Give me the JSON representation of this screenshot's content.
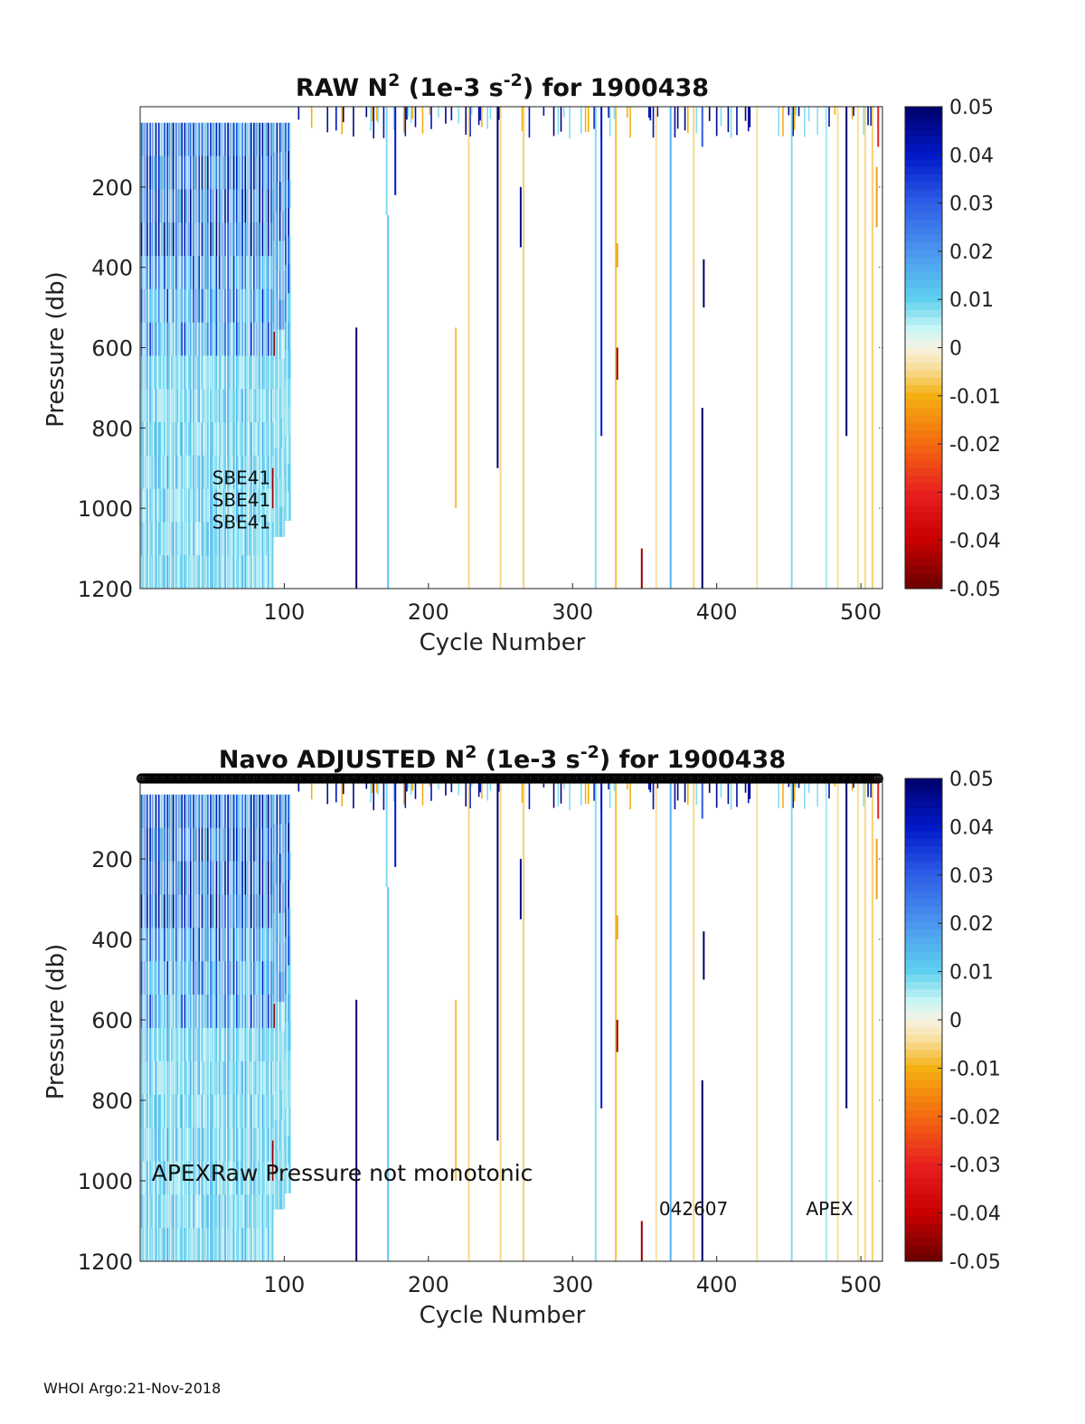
{
  "footer": "WHOI Argo:21-Nov-2018",
  "colorbar": {
    "ticks": [
      "0.05",
      "0.04",
      "0.03",
      "0.02",
      "0.01",
      "0",
      "-0.01",
      "-0.02",
      "-0.03",
      "-0.04",
      "-0.05"
    ],
    "stops": [
      {
        "v": 0.05,
        "c": "#00006a"
      },
      {
        "v": 0.04,
        "c": "#0018c8"
      },
      {
        "v": 0.03,
        "c": "#2e5ee6"
      },
      {
        "v": 0.02,
        "c": "#4a96ee"
      },
      {
        "v": 0.01,
        "c": "#5ed0ee"
      },
      {
        "v": 0.004,
        "c": "#c6f5f5"
      },
      {
        "v": 0.0,
        "c": "#f7f3e4"
      },
      {
        "v": -0.004,
        "c": "#f8e0a0"
      },
      {
        "v": -0.01,
        "c": "#f4b010"
      },
      {
        "v": -0.02,
        "c": "#f46a10"
      },
      {
        "v": -0.03,
        "c": "#e82020"
      },
      {
        "v": -0.04,
        "c": "#c80000"
      },
      {
        "v": -0.05,
        "c": "#6a0000"
      }
    ]
  },
  "chart_data": [
    {
      "type": "heatmap",
      "title_parts": [
        "RAW N",
        "2",
        " (1e-3 s",
        "-2",
        ") for 1900438"
      ],
      "xlabel": "Cycle Number",
      "ylabel": "Pressure (db)",
      "xlim": [
        0,
        515
      ],
      "ylim": [
        1200,
        0
      ],
      "xticks": [
        100,
        200,
        300,
        400,
        500
      ],
      "yticks": [
        200,
        400,
        600,
        800,
        1000,
        1200
      ],
      "clim": [
        -0.05,
        0.05
      ],
      "annotations": [
        {
          "text": "SBE41",
          "x": 50,
          "y": 940
        },
        {
          "text": "SBE41",
          "x": 50,
          "y": 995
        },
        {
          "text": "SBE41",
          "x": 50,
          "y": 1050
        }
      ],
      "markers_top": false
    },
    {
      "type": "heatmap",
      "title_parts": [
        "Navo  ADJUSTED N",
        "2",
        " (1e-3 s",
        "-2",
        ") for 1900438"
      ],
      "xlabel": "Cycle Number",
      "ylabel": "Pressure (db)",
      "xlim": [
        0,
        515
      ],
      "ylim": [
        1200,
        0
      ],
      "xticks": [
        100,
        200,
        300,
        400,
        500
      ],
      "yticks": [
        200,
        400,
        600,
        800,
        1000,
        1200
      ],
      "clim": [
        -0.05,
        0.05
      ],
      "annotations": [
        {
          "text": "APEXRaw Pressure not monotonic",
          "x": 8,
          "y": 1000,
          "size": "big"
        },
        {
          "text": "042607",
          "x": 360,
          "y": 1085
        },
        {
          "text": "APEX",
          "x": 462,
          "y": 1085
        }
      ],
      "markers_top": true
    }
  ],
  "columns": [
    {
      "x": 150,
      "y0": 550,
      "y1": 1200,
      "v": 0.05
    },
    {
      "x": 171,
      "y0": 0,
      "y1": 270,
      "v": 0.008
    },
    {
      "x": 172,
      "y0": 270,
      "y1": 1200,
      "v": 0.012
    },
    {
      "x": 177,
      "y0": 0,
      "y1": 220,
      "v": 0.04
    },
    {
      "x": 219,
      "y0": 550,
      "y1": 1000,
      "v": -0.008
    },
    {
      "x": 228,
      "y0": 0,
      "y1": 1200,
      "v": -0.005
    },
    {
      "x": 248,
      "y0": 0,
      "y1": 900,
      "v": 0.05
    },
    {
      "x": 250,
      "y0": 0,
      "y1": 1200,
      "v": -0.005
    },
    {
      "x": 264,
      "y0": 200,
      "y1": 350,
      "v": 0.045
    },
    {
      "x": 266,
      "y0": 0,
      "y1": 1200,
      "v": -0.006
    },
    {
      "x": 316,
      "y0": 0,
      "y1": 1200,
      "v": 0.008
    },
    {
      "x": 320,
      "y0": 0,
      "y1": 820,
      "v": 0.04
    },
    {
      "x": 330,
      "y0": 0,
      "y1": 1200,
      "v": -0.008
    },
    {
      "x": 331,
      "y0": 600,
      "y1": 680,
      "v": -0.045
    },
    {
      "x": 331,
      "y0": 340,
      "y1": 400,
      "v": -0.012
    },
    {
      "x": 348,
      "y0": 1100,
      "y1": 1200,
      "v": -0.045
    },
    {
      "x": 358,
      "y0": 0,
      "y1": 1200,
      "v": -0.004
    },
    {
      "x": 368,
      "y0": 0,
      "y1": 1200,
      "v": 0.015
    },
    {
      "x": 384,
      "y0": 0,
      "y1": 1200,
      "v": -0.005
    },
    {
      "x": 390,
      "y0": 750,
      "y1": 1200,
      "v": 0.05
    },
    {
      "x": 390,
      "y0": 0,
      "y1": 100,
      "v": 0.03
    },
    {
      "x": 391,
      "y0": 380,
      "y1": 500,
      "v": 0.05
    },
    {
      "x": 428,
      "y0": 0,
      "y1": 1200,
      "v": -0.004
    },
    {
      "x": 452,
      "y0": 0,
      "y1": 1200,
      "v": 0.008
    },
    {
      "x": 476,
      "y0": 0,
      "y1": 1200,
      "v": 0.006
    },
    {
      "x": 484,
      "y0": 0,
      "y1": 1200,
      "v": -0.004
    },
    {
      "x": 490,
      "y0": 0,
      "y1": 820,
      "v": 0.05
    },
    {
      "x": 498,
      "y0": 0,
      "y1": 1200,
      "v": -0.004
    },
    {
      "x": 503,
      "y0": 0,
      "y1": 1200,
      "v": -0.005
    },
    {
      "x": 508,
      "y0": 0,
      "y1": 1200,
      "v": -0.006
    },
    {
      "x": 511,
      "y0": 150,
      "y1": 300,
      "v": -0.012
    },
    {
      "x": 512,
      "y0": 0,
      "y1": 100,
      "v": -0.03
    }
  ]
}
